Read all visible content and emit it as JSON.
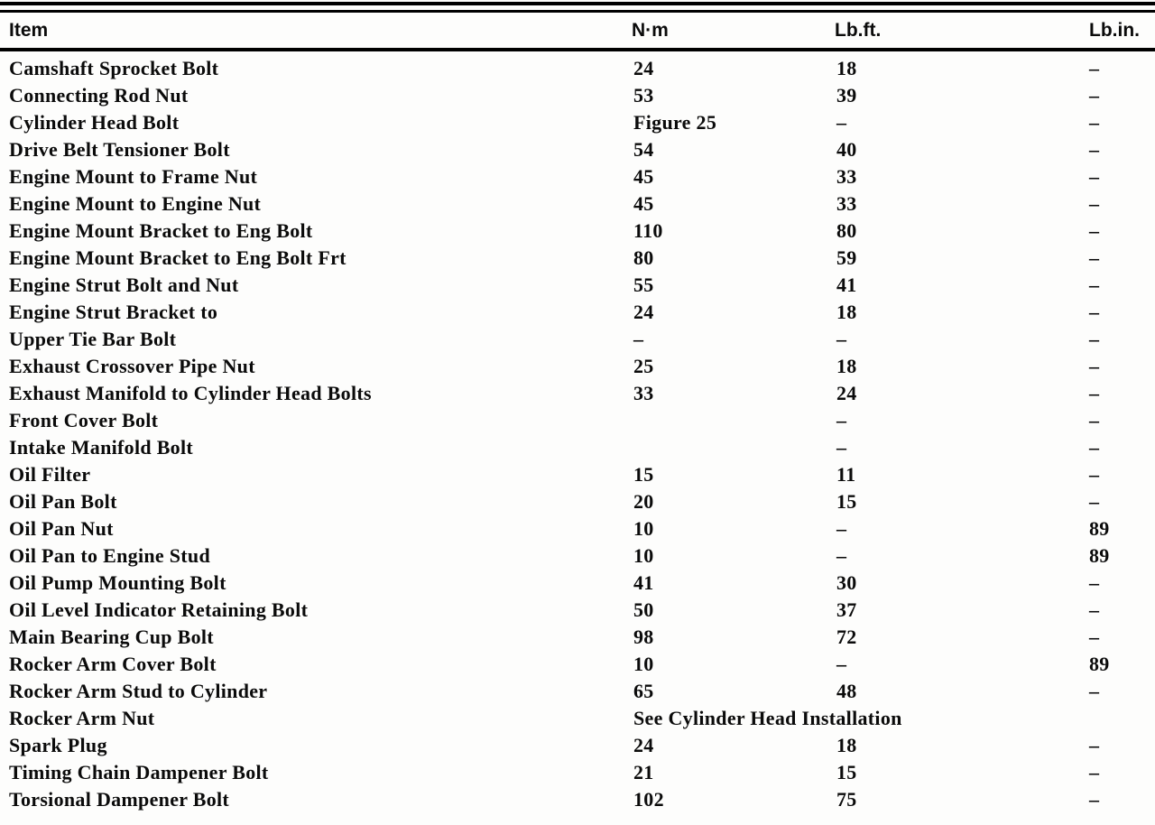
{
  "table": {
    "headers": [
      "Item",
      "N·m",
      "Lb.ft.",
      "Lb.in."
    ],
    "rows": [
      {
        "item": "Camshaft Sprocket Bolt",
        "nm": "24",
        "lbft": "18",
        "lbin": "–"
      },
      {
        "item": "Connecting Rod Nut",
        "nm": "53",
        "lbft": "39",
        "lbin": "–"
      },
      {
        "item": "Cylinder Head Bolt",
        "nm": "Figure 25",
        "lbft": "–",
        "lbin": "–"
      },
      {
        "item": "Drive Belt Tensioner Bolt",
        "nm": "54",
        "lbft": "40",
        "lbin": "–"
      },
      {
        "item": "Engine Mount to Frame Nut",
        "nm": "45",
        "lbft": "33",
        "lbin": "–"
      },
      {
        "item": "Engine Mount to Engine Nut",
        "nm": "45",
        "lbft": "33",
        "lbin": "–"
      },
      {
        "item": "Engine Mount Bracket to Eng Bolt",
        "nm": "110",
        "lbft": "80",
        "lbin": "–"
      },
      {
        "item": "Engine Mount Bracket to Eng Bolt Frt",
        "nm": "80",
        "lbft": "59",
        "lbin": "–"
      },
      {
        "item": "Engine Strut Bolt and Nut",
        "nm": "55",
        "lbft": "41",
        "lbin": "–"
      },
      {
        "item": "Engine Strut Bracket to",
        "nm": "24",
        "lbft": "18",
        "lbin": "–"
      },
      {
        "item": "Upper Tie Bar Bolt",
        "nm": "–",
        "lbft": "–",
        "lbin": "–"
      },
      {
        "item": "Exhaust Crossover Pipe Nut",
        "nm": "25",
        "lbft": "18",
        "lbin": "–"
      },
      {
        "item": "Exhaust Manifold to Cylinder Head Bolts",
        "nm": "33",
        "lbft": "24",
        "lbin": "–"
      },
      {
        "item": "Front Cover Bolt",
        "nm": "",
        "lbft": "–",
        "lbin": "–"
      },
      {
        "item": "Intake Manifold Bolt",
        "nm": "",
        "lbft": "–",
        "lbin": "–"
      },
      {
        "item": "Oil Filter",
        "nm": "15",
        "lbft": "11",
        "lbin": "–"
      },
      {
        "item": "Oil Pan Bolt",
        "nm": "20",
        "lbft": "15",
        "lbin": "–"
      },
      {
        "item": "Oil Pan Nut",
        "nm": "10",
        "lbft": "–",
        "lbin": "89"
      },
      {
        "item": "Oil Pan to Engine Stud",
        "nm": "10",
        "lbft": "–",
        "lbin": "89"
      },
      {
        "item": "Oil Pump Mounting Bolt",
        "nm": "41",
        "lbft": "30",
        "lbin": "–"
      },
      {
        "item": "Oil Level Indicator Retaining Bolt",
        "nm": "50",
        "lbft": "37",
        "lbin": "–"
      },
      {
        "item": "Main Bearing Cup Bolt",
        "nm": "98",
        "lbft": "72",
        "lbin": "–"
      },
      {
        "item": "Rocker Arm Cover Bolt",
        "nm": "10",
        "lbft": "–",
        "lbin": "89"
      },
      {
        "item": "Rocker Arm Stud to Cylinder",
        "nm": "65",
        "lbft": "48",
        "lbin": "–"
      },
      {
        "item": "Rocker Arm Nut",
        "nm": "See Cylinder Head Installation",
        "lbft": "",
        "lbin": "",
        "span": true
      },
      {
        "item": "Spark Plug",
        "nm": "24",
        "lbft": "18",
        "lbin": "–"
      },
      {
        "item": "Timing Chain Dampener Bolt",
        "nm": "21",
        "lbft": "15",
        "lbin": "–"
      },
      {
        "item": "Torsional Dampener Bolt",
        "nm": "102",
        "lbft": "75",
        "lbin": "–"
      }
    ]
  }
}
